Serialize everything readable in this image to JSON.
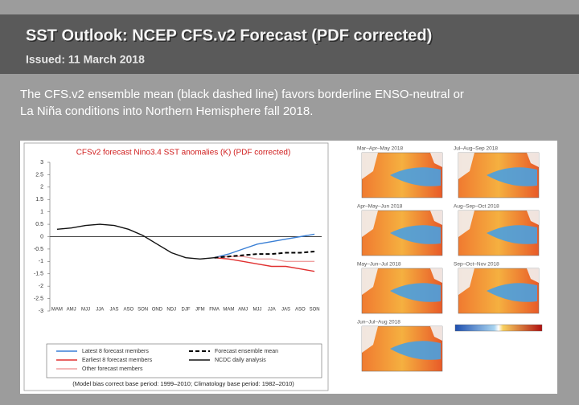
{
  "header": {
    "title": "SST Outlook: NCEP CFS.v2 Forecast (PDF corrected)",
    "issued": "Issued: 11 March 2018"
  },
  "body": [
    "The CFS.v2 ensemble mean (black dashed line) favors borderline ENSO-neutral or",
    "La Niña conditions into Northern Hemisphere fall 2018."
  ],
  "chart_data": {
    "type": "line",
    "title": "CFSv2 forecast Nino3.4 SST anomalies (K) (PDF corrected)",
    "footnote": "(Model bias correct base period: 1999–2010; Climatology base period: 1982–2010)",
    "categories": [
      "MAM",
      "AMJ",
      "MJJ",
      "JJA",
      "JAS",
      "ASO",
      "SON",
      "OND",
      "NDJ",
      "DJF",
      "JFM",
      "FMA",
      "MAM",
      "AMJ",
      "MJJ",
      "JJA",
      "JAS",
      "ASO",
      "SON"
    ],
    "ylim": [
      -3,
      3
    ],
    "yticks": [
      3,
      2.5,
      2,
      1.5,
      1,
      0.5,
      0,
      -0.5,
      -1,
      -1.5,
      -2,
      -2.5,
      -3
    ],
    "grid": false,
    "series": [
      {
        "name": "Latest 8 forecast members",
        "color": "#3a7fd5",
        "values": [
          null,
          null,
          null,
          null,
          null,
          null,
          null,
          null,
          null,
          null,
          null,
          -0.85,
          -0.7,
          -0.5,
          -0.3,
          -0.2,
          -0.1,
          0,
          0.1
        ]
      },
      {
        "name": "Earliest 8 forecast members",
        "color": "#e03030",
        "values": [
          null,
          null,
          null,
          null,
          null,
          null,
          null,
          null,
          null,
          null,
          null,
          -0.85,
          -0.9,
          -1.0,
          -1.1,
          -1.2,
          -1.2,
          -1.3,
          -1.4
        ]
      },
      {
        "name": "Other forecast members",
        "color": "#f0a0a0",
        "values": [
          null,
          null,
          null,
          null,
          null,
          null,
          null,
          null,
          null,
          null,
          null,
          -0.85,
          -0.8,
          -0.8,
          -0.9,
          -0.9,
          -1.0,
          -1.0,
          -1.0
        ]
      },
      {
        "name": "Forecast ensemble mean",
        "color": "#000000",
        "dashed": true,
        "values": [
          null,
          null,
          null,
          null,
          null,
          null,
          null,
          null,
          null,
          null,
          null,
          -0.85,
          -0.8,
          -0.75,
          -0.7,
          -0.7,
          -0.65,
          -0.65,
          -0.6
        ]
      },
      {
        "name": "NCDC daily analysis",
        "color": "#111111",
        "values": [
          0.3,
          0.35,
          0.45,
          0.5,
          0.45,
          0.3,
          0.05,
          -0.3,
          -0.65,
          -0.85,
          -0.9,
          -0.85,
          null,
          null,
          null,
          null,
          null,
          null,
          null
        ]
      }
    ]
  },
  "maps": [
    "Mar–Apr–May 2018",
    "Apr–May–Jun 2018",
    "May–Jun–Jul 2018",
    "Jun–Jul–Aug 2018",
    "Jul–Aug–Sep 2018",
    "Aug–Sep–Oct 2018",
    "Sep–Oct–Nov 2018"
  ]
}
